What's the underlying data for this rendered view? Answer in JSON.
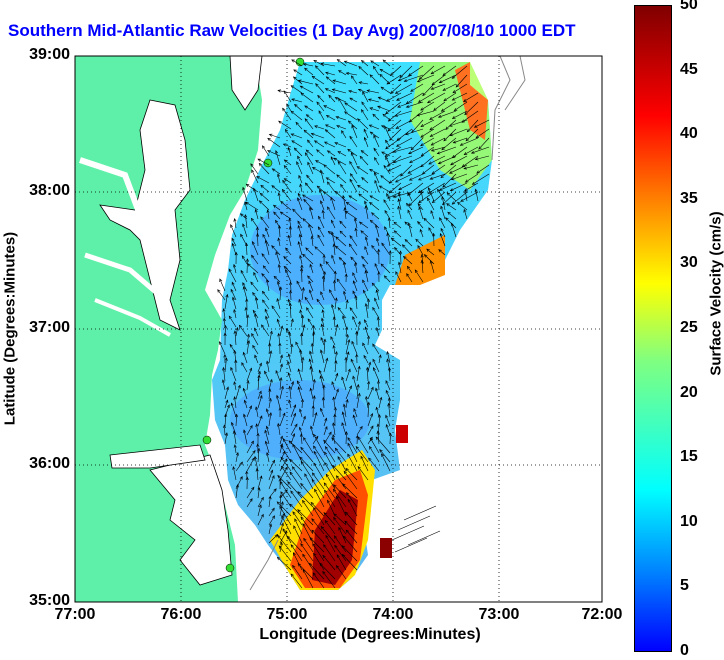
{
  "title": "Southern Mid-Atlantic Raw Velocities (1 Day Avg) 2007/08/10 1000 EDT",
  "map": {
    "x_ticks": [
      "77:00",
      "76:00",
      "75:00",
      "74:00",
      "73:00",
      "72:00"
    ],
    "y_ticks": [
      "39:00",
      "38:00",
      "37:00",
      "36:00",
      "35:00"
    ],
    "xlabel": "Longitude (Degrees:Minutes)",
    "ylabel": "Latitude (Degrees:Minutes)",
    "lon_range": [
      -77,
      -72
    ],
    "lat_range": [
      35,
      39
    ],
    "land_color": "#5ef0a8",
    "grid": "dotted"
  },
  "colorbar": {
    "label": "Surface Velocity (cm/s)",
    "ticks": [
      "50",
      "45",
      "40",
      "35",
      "30",
      "25",
      "20",
      "15",
      "10",
      "5",
      "0"
    ],
    "range": [
      0,
      50
    ],
    "colormap": "jet"
  }
}
